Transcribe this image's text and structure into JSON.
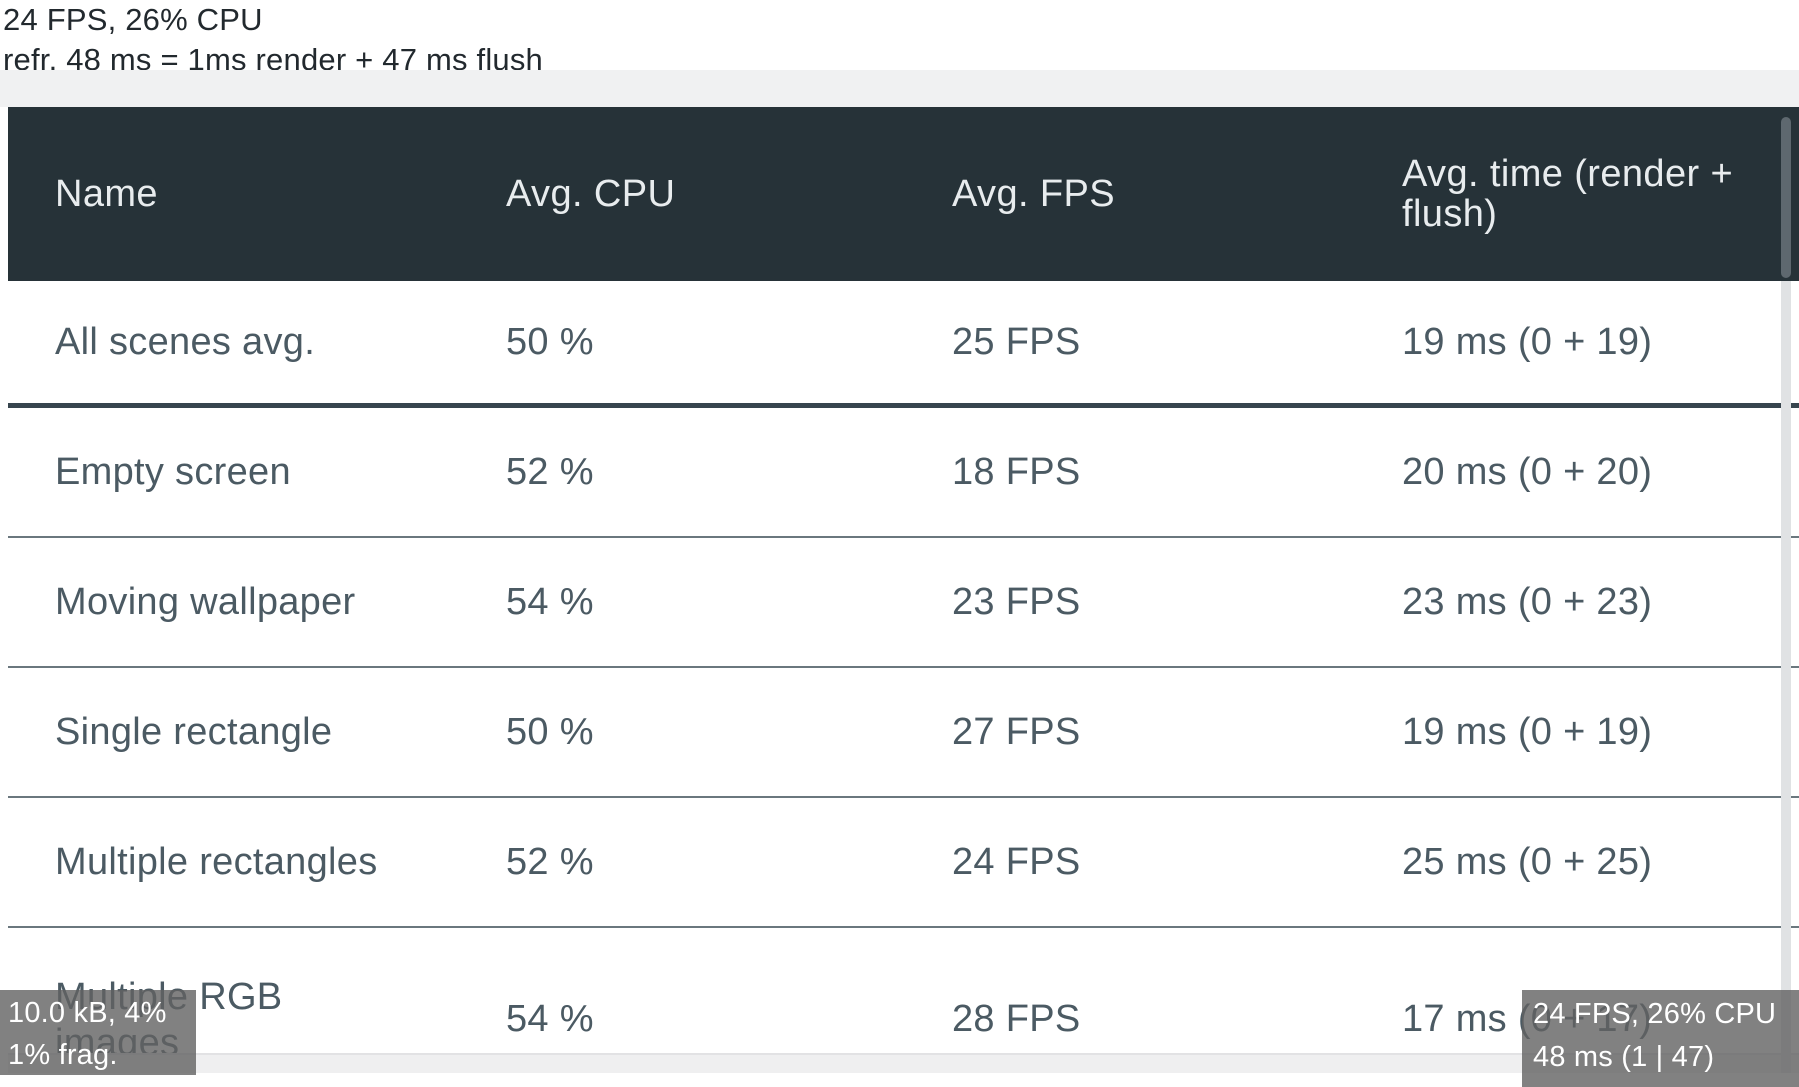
{
  "perf_overlay_top": {
    "line1": "24 FPS, 26% CPU",
    "line2": "refr. 48 ms = 1ms render + 47 ms flush"
  },
  "table": {
    "columns": [
      "Name",
      "Avg. CPU",
      "Avg. FPS",
      "Avg. time (render + flush)"
    ],
    "rows": [
      {
        "name": "All scenes avg.",
        "cpu": "50 %",
        "fps": "25 FPS",
        "time": "19 ms (0 + 19)"
      },
      {
        "name": "Empty screen",
        "cpu": "52 %",
        "fps": "18 FPS",
        "time": "20 ms (0 + 20)"
      },
      {
        "name": "Moving wallpaper",
        "cpu": "54 %",
        "fps": "23 FPS",
        "time": "23 ms (0 + 23)"
      },
      {
        "name": "Single rectangle",
        "cpu": "50 %",
        "fps": "27 FPS",
        "time": "19 ms (0 + 19)"
      },
      {
        "name": "Multiple rectangles",
        "cpu": "52 %",
        "fps": "24 FPS",
        "time": "25 ms (0 + 25)"
      },
      {
        "name": "Multiple RGB images",
        "cpu": "54 %",
        "fps": "28 FPS",
        "time": "17 ms (0 + 17)"
      }
    ]
  },
  "overlay_bottom_left": {
    "line1": "10.0 kB, 4%",
    "line2": "1% frag."
  },
  "overlay_bottom_right": {
    "line1": "24 FPS, 26% CPU",
    "line2": "48 ms (1 | 47)"
  },
  "colors": {
    "header_bg": "#263238",
    "header_text": "#e8ecee",
    "body_text": "#4b5a63",
    "thick_divider": "#37454e",
    "thin_divider": "#6a777e",
    "tooltip_bg": "#616161",
    "tooltip_text": "#ffffff",
    "scrollbar_thumb": "#5e686f",
    "scrollbar_track": "#e0e2e4",
    "top_band": "#f0f1f2"
  }
}
